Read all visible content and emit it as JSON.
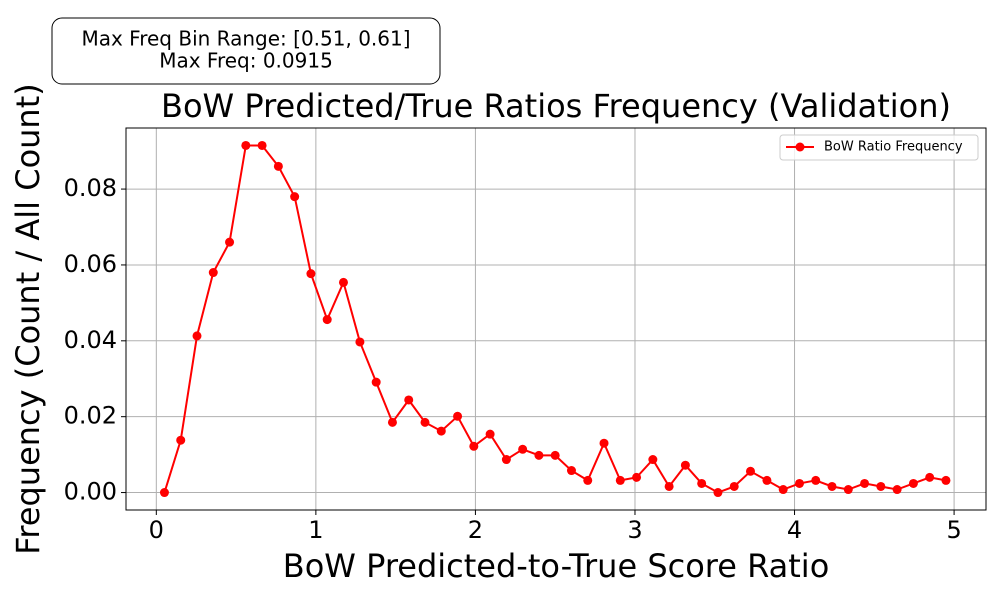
{
  "chart_data": {
    "type": "line",
    "title": "BoW Predicted/True Ratios Frequency (Validation)",
    "xlabel": "BoW Predicted-to-True Score Ratio",
    "ylabel": "Frequency (Count / All Count)",
    "annotation": [
      "Max Freq Bin Range: [0.51, 0.61]",
      "Max Freq: 0.0915"
    ],
    "x": [
      0.051,
      0.153,
      0.255,
      0.357,
      0.459,
      0.561,
      0.663,
      0.765,
      0.867,
      0.969,
      1.071,
      1.173,
      1.276,
      1.378,
      1.48,
      1.582,
      1.684,
      1.786,
      1.888,
      1.99,
      2.092,
      2.194,
      2.296,
      2.398,
      2.5,
      2.602,
      2.704,
      2.806,
      2.908,
      3.01,
      3.112,
      3.214,
      3.316,
      3.418,
      3.52,
      3.622,
      3.724,
      3.827,
      3.929,
      4.031,
      4.133,
      4.235,
      4.337,
      4.439,
      4.541,
      4.643,
      4.745,
      4.847,
      4.949
    ],
    "series": [
      {
        "name": "BoW Ratio Frequency",
        "color": "#ff0000",
        "values": [
          0,
          0.0138,
          0.0413,
          0.058,
          0.066,
          0.0915,
          0.0915,
          0.086,
          0.078,
          0.0577,
          0.0456,
          0.0554,
          0.0397,
          0.0291,
          0.0185,
          0.0244,
          0.0185,
          0.0162,
          0.0201,
          0.0122,
          0.0154,
          0.0087,
          0.0114,
          0.0098,
          0.0098,
          0.0058,
          0.0032,
          0.013,
          0.0032,
          0.004,
          0.0087,
          0.0016,
          0.0072,
          0.0024,
          0,
          0.0016,
          0.0056,
          0.0032,
          0.0008,
          0.0024,
          0.0032,
          0.0016,
          0.0008,
          0.0024,
          0.0016,
          0.0008,
          0.0024,
          0.004,
          0.0032
        ]
      }
    ],
    "xlim": [
      -0.19,
      5.2
    ],
    "ylim": [
      -0.0046,
      0.0961
    ],
    "xticks": [
      0,
      1,
      2,
      3,
      4,
      5
    ],
    "yticks": [
      {
        "value": 0,
        "label": "0.00"
      },
      {
        "value": 0.02,
        "label": "0.02"
      },
      {
        "value": 0.04,
        "label": "0.04"
      },
      {
        "value": 0.06,
        "label": "0.06"
      },
      {
        "value": 0.08,
        "label": "0.08"
      }
    ],
    "grid": true,
    "legend": "upper right"
  }
}
